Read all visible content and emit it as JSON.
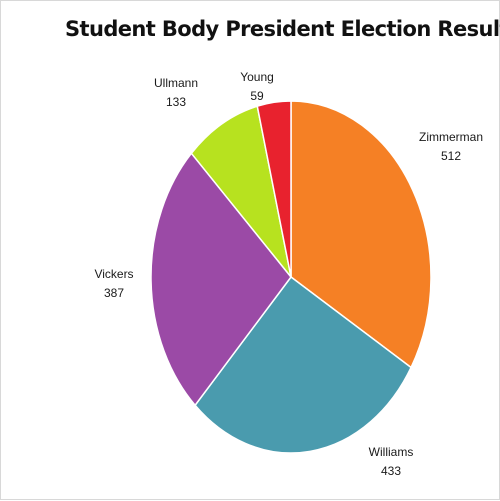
{
  "chart_data": {
    "type": "pie",
    "title": "Student Body President Election Results",
    "slices": [
      {
        "label": "Zimmerman",
        "value": 512,
        "color": "#F58025"
      },
      {
        "label": "Williams",
        "value": 433,
        "color": "#4A9BAE"
      },
      {
        "label": "Vickers",
        "value": 387,
        "color": "#9B4AA6"
      },
      {
        "label": "Ullmann",
        "value": 133,
        "color": "#B7E21F"
      },
      {
        "label": "Young",
        "value": 59,
        "color": "#E8222E"
      }
    ],
    "start_angle": "12 o'clock",
    "direction": "clockwise",
    "data_labels": "category name and value"
  }
}
